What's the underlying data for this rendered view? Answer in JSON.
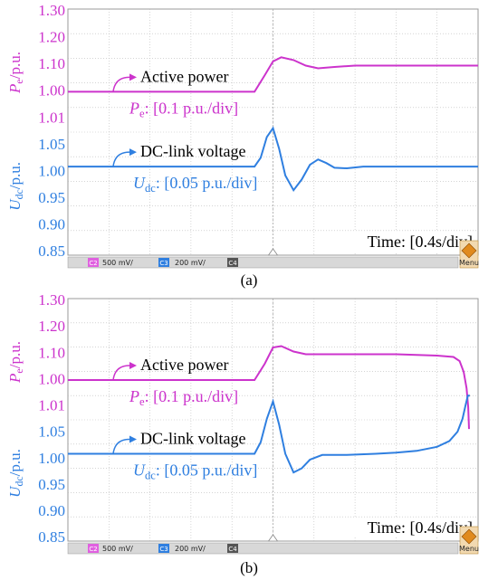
{
  "colors": {
    "power": "#cc33cc",
    "voltage": "#2f7fe0",
    "grid": "#bbbbbb",
    "bar": "#d8d8d8"
  },
  "icons": {
    "menu_button": "warning-diamond-icon"
  },
  "chart_data": [
    {
      "type": "line",
      "caption": "(a)",
      "ylabel_power": "Pe/p.u.",
      "ylabel_voltage": "Udc/p.u.",
      "yticks_power": [
        "1.30",
        "1.20",
        "1.10",
        "1.00"
      ],
      "yticks_voltage": [
        "0.95",
        "0.90",
        "0.85"
      ],
      "yticks_shared": [
        "1.01",
        "1.05",
        "1.00"
      ],
      "annotations": {
        "power_name": "Active power",
        "power_scale": "Pe: [0.1 p.u./div]",
        "voltage_name": "DC-link voltage",
        "voltage_scale": "Udc: [0.05 p.u./div]",
        "time": "Time: [0.4s/div]"
      },
      "scope_bar": {
        "ch2_label": "C2",
        "ch2_scale": "500 mV/",
        "ch3_label": "C3",
        "ch3_scale": "200 mV/",
        "ch4_label": "C4",
        "menu_label": "Menu"
      },
      "xlim": [
        0,
        10
      ],
      "series": [
        {
          "name": "Active power",
          "unit": "p.u.",
          "ylim": [
            0.8,
            1.3
          ],
          "x": [
            0,
            4.55,
            4.8,
            5.0,
            5.2,
            5.5,
            5.8,
            6.1,
            6.5,
            7.0,
            7.5,
            8.0,
            10
          ],
          "y": [
            1.0,
            1.0,
            1.06,
            1.11,
            1.125,
            1.115,
            1.095,
            1.085,
            1.09,
            1.095,
            1.095,
            1.095,
            1.095
          ]
        },
        {
          "name": "DC-link voltage",
          "unit": "p.u.",
          "ylim": [
            0.85,
            1.1
          ],
          "x": [
            0,
            4.55,
            4.7,
            4.85,
            5.0,
            5.15,
            5.3,
            5.5,
            5.7,
            5.9,
            6.1,
            6.3,
            6.5,
            6.8,
            7.2,
            7.6,
            8.0,
            10
          ],
          "y": [
            1.0,
            1.0,
            1.015,
            1.05,
            1.065,
            1.03,
            0.985,
            0.96,
            0.978,
            1.003,
            1.012,
            1.006,
            0.998,
            0.997,
            1.0,
            1.0,
            1.0,
            1.0
          ]
        }
      ]
    },
    {
      "type": "line",
      "caption": "(b)",
      "ylabel_power": "Pe/p.u.",
      "ylabel_voltage": "Udc/p.u.",
      "yticks_power": [
        "1.30",
        "1.20",
        "1.10",
        "1.00"
      ],
      "yticks_voltage": [
        "0.95",
        "0.90",
        "0.85"
      ],
      "yticks_shared": [
        "1.01",
        "1.05",
        "1.00"
      ],
      "annotations": {
        "power_name": "Active power",
        "power_scale": "Pe: [0.1 p.u./div]",
        "voltage_name": "DC-link voltage",
        "voltage_scale": "Udc: [0.05 p.u./div]",
        "time": "Time: [0.4s/div]"
      },
      "scope_bar": {
        "ch2_label": "C2",
        "ch2_scale": "500 mV/",
        "ch3_label": "C3",
        "ch3_scale": "200 mV/",
        "ch4_label": "C4",
        "menu_label": "Menu"
      },
      "xlim": [
        0,
        10
      ],
      "series": [
        {
          "name": "Active power",
          "unit": "p.u.",
          "ylim": [
            0.8,
            1.3
          ],
          "x": [
            0,
            4.55,
            4.8,
            5.0,
            5.2,
            5.5,
            5.8,
            6.2,
            7.0,
            8.0,
            9.0,
            9.4,
            9.55,
            9.65,
            9.72,
            9.76,
            9.78
          ],
          "y": [
            1.0,
            1.0,
            1.06,
            1.12,
            1.125,
            1.105,
            1.095,
            1.095,
            1.095,
            1.095,
            1.09,
            1.085,
            1.07,
            1.03,
            0.97,
            0.9,
            0.82
          ]
        },
        {
          "name": "DC-link voltage",
          "unit": "p.u.",
          "ylim": [
            0.85,
            1.1
          ],
          "x": [
            0,
            4.55,
            4.7,
            4.85,
            5.0,
            5.15,
            5.3,
            5.5,
            5.7,
            5.9,
            6.2,
            6.8,
            7.5,
            8.0,
            8.5,
            9.0,
            9.3,
            9.5,
            9.62,
            9.7,
            9.75,
            9.8
          ],
          "y": [
            1.0,
            1.0,
            1.02,
            1.06,
            1.09,
            1.05,
            1.0,
            0.968,
            0.975,
            0.99,
            0.998,
            0.998,
            1.0,
            1.002,
            1.005,
            1.012,
            1.022,
            1.038,
            1.06,
            1.085,
            1.1,
            1.1
          ]
        }
      ]
    }
  ]
}
